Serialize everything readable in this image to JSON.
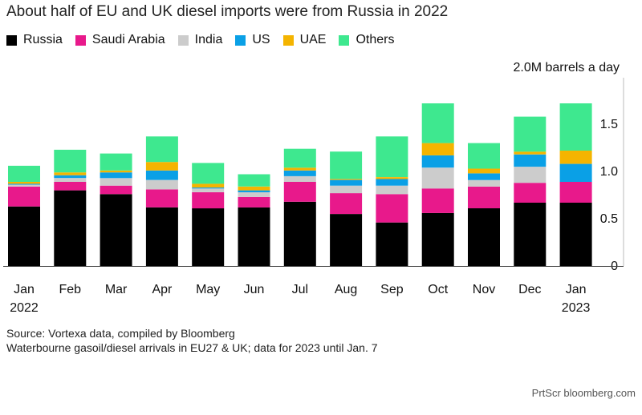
{
  "title": "About half of EU and UK diesel imports were from Russia in 2022",
  "unit_label": "2.0M barrels a day",
  "source": "Source: Vortexa data, compiled by Bloomberg",
  "note": "Waterbourne gasoil/diesel arrivals in EU27 & UK; data for 2023 until Jan. 7",
  "credit": "PrtScr bloomberg.com",
  "chart_data": {
    "type": "bar",
    "stacked": true,
    "categories": [
      "Jan",
      "Feb",
      "Mar",
      "Apr",
      "May",
      "Jun",
      "Jul",
      "Aug",
      "Sep",
      "Oct",
      "Nov",
      "Dec",
      "Jan"
    ],
    "year_labels": [
      {
        "index": 0,
        "label": "2022"
      },
      {
        "index": 12,
        "label": "2023"
      }
    ],
    "ylim": [
      0,
      2.0
    ],
    "yticks": [
      0,
      0.5,
      1.0,
      1.5
    ],
    "ytick_labels": [
      "0",
      "0.5",
      "1.0",
      "1.5"
    ],
    "legend_position": "top-left",
    "grid": false,
    "series": [
      {
        "name": "Russia",
        "color": "#000000",
        "values": [
          0.63,
          0.8,
          0.76,
          0.62,
          0.61,
          0.62,
          0.68,
          0.55,
          0.46,
          0.56,
          0.61,
          0.67,
          0.67
        ]
      },
      {
        "name": "Saudi Arabia",
        "color": "#e8198b",
        "values": [
          0.21,
          0.09,
          0.09,
          0.19,
          0.17,
          0.11,
          0.21,
          0.22,
          0.3,
          0.26,
          0.23,
          0.21,
          0.22
        ]
      },
      {
        "name": "India",
        "color": "#cccccc",
        "values": [
          0.02,
          0.04,
          0.08,
          0.1,
          0.04,
          0.05,
          0.06,
          0.08,
          0.09,
          0.22,
          0.07,
          0.17,
          0.0
        ]
      },
      {
        "name": "US",
        "color": "#0aa0e6",
        "values": [
          0.01,
          0.03,
          0.06,
          0.1,
          0.01,
          0.02,
          0.06,
          0.06,
          0.07,
          0.13,
          0.07,
          0.13,
          0.19
        ]
      },
      {
        "name": "UAE",
        "color": "#f4b400",
        "values": [
          0.02,
          0.03,
          0.02,
          0.09,
          0.04,
          0.04,
          0.03,
          0.01,
          0.02,
          0.13,
          0.05,
          0.03,
          0.14
        ]
      },
      {
        "name": "Others",
        "color": "#3ee88f",
        "values": [
          0.17,
          0.24,
          0.18,
          0.27,
          0.22,
          0.13,
          0.2,
          0.29,
          0.43,
          0.42,
          0.27,
          0.37,
          0.5
        ]
      }
    ]
  }
}
